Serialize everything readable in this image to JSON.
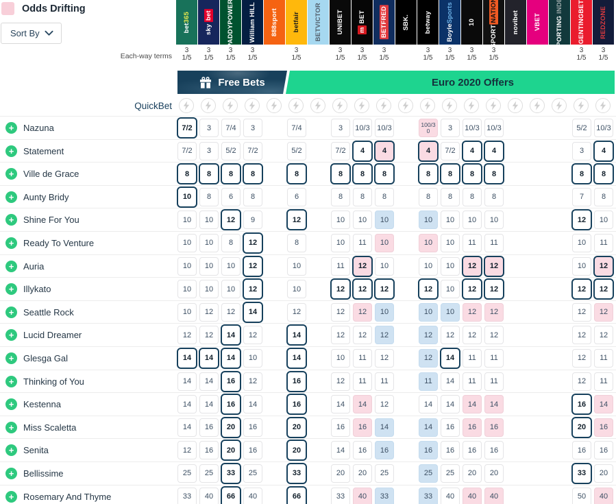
{
  "legend": {
    "label": "Odds Drifting",
    "swatch_color": "#f8cfd9",
    "icon": "drifting-swatch"
  },
  "sort_by": {
    "label": "Sort By",
    "icon": "chevron-down-icon"
  },
  "each_way": {
    "label": "Each-way terms",
    "places": "3",
    "fraction": "1/5"
  },
  "banners": {
    "free_bets": {
      "label": "Free Bets",
      "bg": "#17405b",
      "icon": "gift-icon"
    },
    "offers": {
      "label": "Euro 2020 Offers",
      "bg": "#1ed48f"
    }
  },
  "quickbet": {
    "label": "QuickBet",
    "icon": "lightning-icon"
  },
  "colors": {
    "best_border": "#16405c",
    "drift_pink": "#fadbe3",
    "shorten_blue": "#cfe2f2",
    "add_green": "#2ec97e",
    "navy": "#173e5b"
  },
  "bookmakers": [
    {
      "name": "bet365",
      "bg": "#18725a",
      "each_way": true,
      "parts": [
        {
          "t": "bet",
          "c": "#ffffff"
        },
        {
          "t": "365",
          "c": "#e8e94f"
        }
      ]
    },
    {
      "name": "sky bet",
      "bg": "#16265c",
      "each_way": true,
      "parts": [
        {
          "t": "sky ",
          "c": "#ffffff"
        },
        {
          "t": "bet",
          "c": "#ffffff",
          "bg": "#e4002b"
        }
      ]
    },
    {
      "name": "PADDYPOWER.",
      "bg": "#00522f",
      "each_way": true,
      "parts": [
        {
          "t": "PADDYPOWER.",
          "c": "#ffffff"
        }
      ]
    },
    {
      "name": "William HILL",
      "bg": "#041e42",
      "each_way": true,
      "parts": [
        {
          "t": "William HILL",
          "c": "#ffffff"
        }
      ]
    },
    {
      "name": "888sport",
      "bg": "#f56312",
      "each_way": false,
      "parts": [
        {
          "t": "888sport",
          "c": "#ffffff"
        }
      ]
    },
    {
      "name": "betfair",
      "bg": "#ffb80c",
      "each_way": true,
      "parts": [
        {
          "t": "betfair",
          "c": "#1b1b1b"
        }
      ]
    },
    {
      "name": "BETVICTOR",
      "bg": "#a6d8f0",
      "each_way": false,
      "parts": [
        {
          "t": "BETVICTOR",
          "c": "#54616d"
        }
      ]
    },
    {
      "name": "UNIBET",
      "bg": "#0a0a0a",
      "each_way": true,
      "parts": [
        {
          "t": "UNIBET",
          "c": "#ffffff"
        }
      ]
    },
    {
      "name": "MANSIONBET",
      "bg": "#060606",
      "each_way": true,
      "parts": [
        {
          "t": "m",
          "c": "#ffffff",
          "bg": "#d71920"
        },
        {
          "t": " BET",
          "c": "#ffffff"
        }
      ]
    },
    {
      "name": "BETFRED",
      "bg": "#102d5e",
      "each_way": true,
      "parts": [
        {
          "t": "BETFRED",
          "c": "#ffffff",
          "bg": "#e03a3e"
        }
      ]
    },
    {
      "name": "SBK.",
      "bg": "#000000",
      "each_way": false,
      "parts": [
        {
          "t": "SBK.",
          "c": "#ffffff"
        }
      ]
    },
    {
      "name": "betway",
      "bg": "#000000",
      "each_way": true,
      "parts": [
        {
          "t": "betway",
          "c": "#ffffff"
        }
      ]
    },
    {
      "name": "BoyleSports",
      "bg": "#0b3268",
      "each_way": true,
      "parts": [
        {
          "t": "Boyle",
          "c": "#ffffff"
        },
        {
          "t": "Sports",
          "c": "#6db3e8"
        }
      ]
    },
    {
      "name": "10bet",
      "bg": "#0a0a0a",
      "each_way": true,
      "parts": [
        {
          "t": "10",
          "c": "#ffffff"
        }
      ]
    },
    {
      "name": "SPORTNATION",
      "bg": "#111111",
      "each_way": true,
      "parts": [
        {
          "t": "SPORT",
          "c": "#ffffff"
        },
        {
          "t": "NATION",
          "c": "#111111",
          "bg": "#f05a23"
        }
      ]
    },
    {
      "name": "novibet",
      "bg": "#23232b",
      "each_way": false,
      "parts": [
        {
          "t": "novibet",
          "c": "#ffffff"
        }
      ]
    },
    {
      "name": "VBET",
      "bg": "#e5007e",
      "each_way": false,
      "parts": [
        {
          "t": "VBET",
          "c": "#ffffff"
        }
      ]
    },
    {
      "name": "SPORTING INDEX",
      "bg": "#12393c",
      "each_way": false,
      "parts": [
        {
          "t": "SPORTING ",
          "c": "#ffffff"
        },
        {
          "t": "INDEX",
          "c": "#9aa7a7"
        }
      ]
    },
    {
      "name": "GENTINGBET",
      "bg": "#ea1c2d",
      "each_way": true,
      "parts": [
        {
          "t": "GENTINGBET",
          "c": "#ffffff"
        }
      ]
    },
    {
      "name": "REDZONE",
      "bg": "#131c3a",
      "each_way": true,
      "parts": [
        {
          "t": "REDZONE",
          "c": "#d93a3f"
        }
      ]
    }
  ],
  "horses": [
    {
      "name": "Nazuna",
      "odds": [
        {
          "v": "7/2",
          "s": "b"
        },
        {
          "v": "3"
        },
        {
          "v": "7/4"
        },
        {
          "v": "3"
        },
        null,
        {
          "v": "7/4"
        },
        null,
        {
          "v": "3"
        },
        {
          "v": "10/3"
        },
        {
          "v": "10/3"
        },
        null,
        {
          "v": "100/30",
          "s": "p"
        },
        {
          "v": "3"
        },
        {
          "v": "10/3"
        },
        {
          "v": "10/3"
        },
        null,
        null,
        null,
        {
          "v": "5/2"
        },
        {
          "v": "10/3"
        }
      ]
    },
    {
      "name": "Statement",
      "odds": [
        {
          "v": "7/2"
        },
        {
          "v": "3"
        },
        {
          "v": "5/2"
        },
        {
          "v": "7/2"
        },
        null,
        {
          "v": "5/2"
        },
        null,
        {
          "v": "7/2"
        },
        {
          "v": "4",
          "s": "b"
        },
        {
          "v": "4",
          "s": "pb"
        },
        null,
        {
          "v": "4",
          "s": "pb"
        },
        {
          "v": "7/2"
        },
        {
          "v": "4",
          "s": "b"
        },
        {
          "v": "4",
          "s": "b"
        },
        null,
        null,
        null,
        {
          "v": "3"
        },
        {
          "v": "4",
          "s": "b"
        }
      ]
    },
    {
      "name": "Ville de Grace",
      "odds": [
        {
          "v": "8",
          "s": "b"
        },
        {
          "v": "8",
          "s": "b"
        },
        {
          "v": "8",
          "s": "b"
        },
        {
          "v": "8",
          "s": "b"
        },
        null,
        {
          "v": "8",
          "s": "b"
        },
        null,
        {
          "v": "8",
          "s": "b"
        },
        {
          "v": "8",
          "s": "b"
        },
        {
          "v": "8",
          "s": "b"
        },
        null,
        {
          "v": "8",
          "s": "b"
        },
        {
          "v": "8",
          "s": "b"
        },
        {
          "v": "8",
          "s": "b"
        },
        {
          "v": "8",
          "s": "b"
        },
        null,
        null,
        null,
        {
          "v": "8",
          "s": "b"
        },
        {
          "v": "8",
          "s": "b"
        }
      ]
    },
    {
      "name": "Aunty Bridy",
      "odds": [
        {
          "v": "10",
          "s": "b"
        },
        {
          "v": "8"
        },
        {
          "v": "6"
        },
        {
          "v": "8"
        },
        null,
        {
          "v": "6"
        },
        null,
        {
          "v": "8"
        },
        {
          "v": "8"
        },
        {
          "v": "8"
        },
        null,
        {
          "v": "8"
        },
        {
          "v": "8"
        },
        {
          "v": "8"
        },
        {
          "v": "8"
        },
        null,
        null,
        null,
        {
          "v": "7"
        },
        {
          "v": "8"
        }
      ]
    },
    {
      "name": "Shine For You",
      "odds": [
        {
          "v": "10"
        },
        {
          "v": "10"
        },
        {
          "v": "12",
          "s": "b"
        },
        {
          "v": "9"
        },
        null,
        {
          "v": "12",
          "s": "b"
        },
        null,
        {
          "v": "10"
        },
        {
          "v": "10"
        },
        {
          "v": "10",
          "s": "u"
        },
        null,
        {
          "v": "10",
          "s": "u"
        },
        {
          "v": "10"
        },
        {
          "v": "10"
        },
        {
          "v": "10"
        },
        null,
        null,
        null,
        {
          "v": "12",
          "s": "b"
        },
        {
          "v": "10"
        }
      ]
    },
    {
      "name": "Ready To Venture",
      "odds": [
        {
          "v": "10"
        },
        {
          "v": "10"
        },
        {
          "v": "8"
        },
        {
          "v": "12",
          "s": "b"
        },
        null,
        {
          "v": "8"
        },
        null,
        {
          "v": "10"
        },
        {
          "v": "11"
        },
        {
          "v": "10",
          "s": "p"
        },
        null,
        {
          "v": "10",
          "s": "p"
        },
        {
          "v": "10"
        },
        {
          "v": "11"
        },
        {
          "v": "11"
        },
        null,
        null,
        null,
        {
          "v": "10"
        },
        {
          "v": "11"
        }
      ]
    },
    {
      "name": "Auria",
      "odds": [
        {
          "v": "10"
        },
        {
          "v": "10"
        },
        {
          "v": "10"
        },
        {
          "v": "12",
          "s": "b"
        },
        null,
        {
          "v": "10"
        },
        null,
        {
          "v": "11"
        },
        {
          "v": "12",
          "s": "pb"
        },
        {
          "v": "10"
        },
        null,
        {
          "v": "10"
        },
        {
          "v": "10"
        },
        {
          "v": "12",
          "s": "pb"
        },
        {
          "v": "12",
          "s": "pb"
        },
        null,
        null,
        null,
        {
          "v": "10"
        },
        {
          "v": "12",
          "s": "pb"
        }
      ]
    },
    {
      "name": "Illykato",
      "odds": [
        {
          "v": "10"
        },
        {
          "v": "10"
        },
        {
          "v": "10"
        },
        {
          "v": "12",
          "s": "b"
        },
        null,
        {
          "v": "10"
        },
        null,
        {
          "v": "12",
          "s": "b"
        },
        {
          "v": "12",
          "s": "b"
        },
        {
          "v": "12",
          "s": "b"
        },
        null,
        {
          "v": "12",
          "s": "b"
        },
        {
          "v": "10"
        },
        {
          "v": "12",
          "s": "b"
        },
        {
          "v": "12",
          "s": "b"
        },
        null,
        null,
        null,
        {
          "v": "12",
          "s": "b"
        },
        {
          "v": "12",
          "s": "b"
        }
      ]
    },
    {
      "name": "Seattle Rock",
      "odds": [
        {
          "v": "10"
        },
        {
          "v": "12"
        },
        {
          "v": "12"
        },
        {
          "v": "14",
          "s": "b"
        },
        null,
        {
          "v": "12"
        },
        null,
        {
          "v": "12"
        },
        {
          "v": "12",
          "s": "p"
        },
        {
          "v": "10",
          "s": "u"
        },
        null,
        {
          "v": "10",
          "s": "u"
        },
        {
          "v": "10",
          "s": "u"
        },
        {
          "v": "12",
          "s": "p"
        },
        {
          "v": "12",
          "s": "p"
        },
        null,
        null,
        null,
        {
          "v": "12"
        },
        {
          "v": "12",
          "s": "p"
        }
      ]
    },
    {
      "name": "Lucid Dreamer",
      "odds": [
        {
          "v": "12"
        },
        {
          "v": "12"
        },
        {
          "v": "14",
          "s": "b"
        },
        {
          "v": "12"
        },
        null,
        {
          "v": "14",
          "s": "b"
        },
        null,
        {
          "v": "12"
        },
        {
          "v": "12"
        },
        {
          "v": "12",
          "s": "u"
        },
        null,
        {
          "v": "12",
          "s": "u"
        },
        {
          "v": "12"
        },
        {
          "v": "12"
        },
        {
          "v": "12"
        },
        null,
        null,
        null,
        {
          "v": "12"
        },
        {
          "v": "12"
        }
      ]
    },
    {
      "name": "Glesga Gal",
      "odds": [
        {
          "v": "14",
          "s": "b"
        },
        {
          "v": "14",
          "s": "b"
        },
        {
          "v": "14",
          "s": "b"
        },
        {
          "v": "10"
        },
        null,
        {
          "v": "14",
          "s": "b"
        },
        null,
        {
          "v": "10"
        },
        {
          "v": "11"
        },
        {
          "v": "12"
        },
        null,
        {
          "v": "12",
          "s": "u"
        },
        {
          "v": "14",
          "s": "b"
        },
        {
          "v": "11"
        },
        {
          "v": "11"
        },
        null,
        null,
        null,
        {
          "v": "12"
        },
        {
          "v": "11"
        }
      ]
    },
    {
      "name": "Thinking of You",
      "odds": [
        {
          "v": "14"
        },
        {
          "v": "14"
        },
        {
          "v": "16",
          "s": "b"
        },
        {
          "v": "12"
        },
        null,
        {
          "v": "16",
          "s": "b"
        },
        null,
        {
          "v": "12"
        },
        {
          "v": "11"
        },
        {
          "v": "11"
        },
        null,
        {
          "v": "11",
          "s": "u"
        },
        {
          "v": "14"
        },
        {
          "v": "11"
        },
        {
          "v": "11"
        },
        null,
        null,
        null,
        {
          "v": "12"
        },
        {
          "v": "11"
        }
      ]
    },
    {
      "name": "Kestenna",
      "odds": [
        {
          "v": "14"
        },
        {
          "v": "14"
        },
        {
          "v": "16",
          "s": "b"
        },
        {
          "v": "14"
        },
        null,
        {
          "v": "16",
          "s": "b"
        },
        null,
        {
          "v": "14"
        },
        {
          "v": "14",
          "s": "p"
        },
        {
          "v": "12"
        },
        null,
        {
          "v": "14"
        },
        {
          "v": "14"
        },
        {
          "v": "14",
          "s": "p"
        },
        {
          "v": "14",
          "s": "p"
        },
        null,
        null,
        null,
        {
          "v": "16",
          "s": "b"
        },
        {
          "v": "14",
          "s": "p"
        }
      ]
    },
    {
      "name": "Miss Scaletta",
      "odds": [
        {
          "v": "14"
        },
        {
          "v": "16"
        },
        {
          "v": "20",
          "s": "b"
        },
        {
          "v": "16"
        },
        null,
        {
          "v": "20",
          "s": "b"
        },
        null,
        {
          "v": "16"
        },
        {
          "v": "16",
          "s": "p"
        },
        {
          "v": "14",
          "s": "u"
        },
        null,
        {
          "v": "14",
          "s": "u"
        },
        {
          "v": "16"
        },
        {
          "v": "16",
          "s": "p"
        },
        {
          "v": "16",
          "s": "p"
        },
        null,
        null,
        null,
        {
          "v": "20",
          "s": "b"
        },
        {
          "v": "16",
          "s": "p"
        }
      ]
    },
    {
      "name": "Senita",
      "odds": [
        {
          "v": "12"
        },
        {
          "v": "16"
        },
        {
          "v": "20",
          "s": "b"
        },
        {
          "v": "16"
        },
        null,
        {
          "v": "20",
          "s": "b"
        },
        null,
        {
          "v": "14"
        },
        {
          "v": "16"
        },
        {
          "v": "16",
          "s": "u"
        },
        null,
        {
          "v": "16",
          "s": "u"
        },
        {
          "v": "16"
        },
        {
          "v": "16"
        },
        {
          "v": "16"
        },
        null,
        null,
        null,
        {
          "v": "16"
        },
        {
          "v": "16"
        }
      ]
    },
    {
      "name": "Bellissime",
      "odds": [
        {
          "v": "25"
        },
        {
          "v": "25"
        },
        {
          "v": "33",
          "s": "b"
        },
        {
          "v": "25"
        },
        null,
        {
          "v": "33",
          "s": "b"
        },
        null,
        {
          "v": "20"
        },
        {
          "v": "20"
        },
        {
          "v": "25"
        },
        null,
        {
          "v": "25",
          "s": "u"
        },
        {
          "v": "25"
        },
        {
          "v": "20"
        },
        {
          "v": "20"
        },
        null,
        null,
        null,
        {
          "v": "33",
          "s": "b"
        },
        {
          "v": "20"
        }
      ]
    },
    {
      "name": "Rosemary And Thyme",
      "odds": [
        {
          "v": "33"
        },
        {
          "v": "40"
        },
        {
          "v": "66",
          "s": "b"
        },
        {
          "v": "40"
        },
        null,
        {
          "v": "66",
          "s": "b"
        },
        null,
        {
          "v": "33"
        },
        {
          "v": "40",
          "s": "p"
        },
        {
          "v": "33",
          "s": "u"
        },
        null,
        {
          "v": "33",
          "s": "u"
        },
        {
          "v": "40"
        },
        {
          "v": "40",
          "s": "p"
        },
        {
          "v": "40",
          "s": "p"
        },
        null,
        null,
        null,
        {
          "v": "50"
        },
        {
          "v": "40",
          "s": "p"
        }
      ]
    }
  ]
}
